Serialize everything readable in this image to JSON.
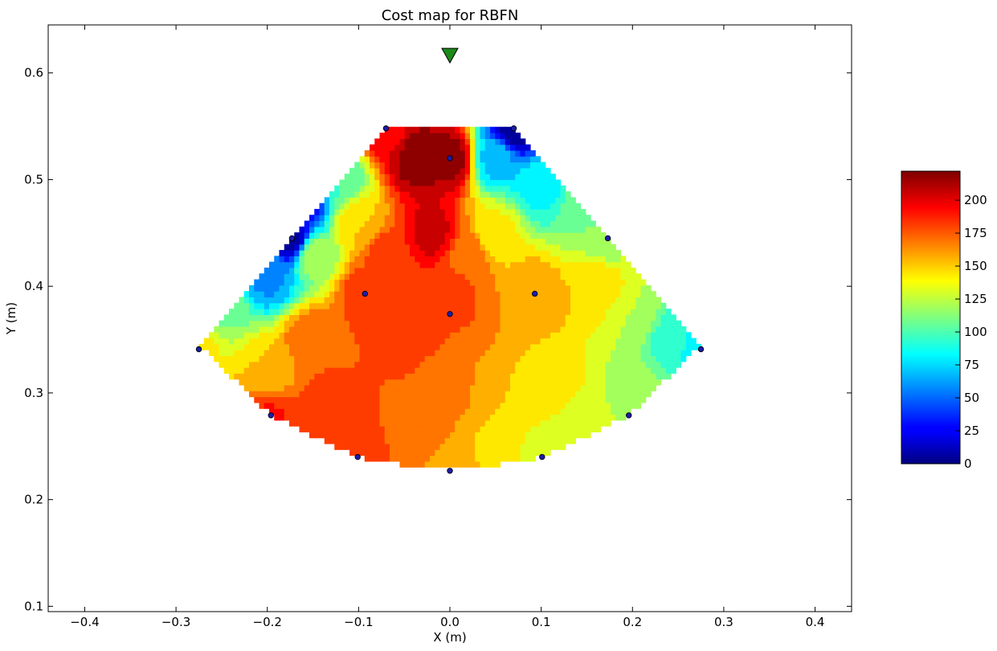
{
  "chart_data": {
    "type": "heatmap",
    "title": "Cost map for RBFN",
    "xlabel": "X (m)",
    "ylabel": "Y (m)",
    "xlim": [
      -0.44,
      0.44
    ],
    "ylim": [
      0.095,
      0.645
    ],
    "x_ticks": [
      -0.4,
      -0.3,
      -0.2,
      -0.1,
      0.0,
      0.1,
      0.2,
      0.3,
      0.4
    ],
    "x_tick_labels": [
      "−0.4",
      "−0.3",
      "−0.2",
      "−0.1",
      "0.0",
      "0.1",
      "0.2",
      "0.3",
      "0.4"
    ],
    "y_ticks": [
      0.1,
      0.2,
      0.3,
      0.4,
      0.5,
      0.6
    ],
    "y_tick_labels": [
      "0.1",
      "0.2",
      "0.3",
      "0.4",
      "0.5",
      "0.6"
    ],
    "colorbar": {
      "range": [
        0,
        222
      ],
      "ticks": [
        0,
        25,
        50,
        75,
        100,
        125,
        150,
        175,
        200
      ],
      "tick_labels": [
        "0",
        "25",
        "50",
        "75",
        "100",
        "125",
        "150",
        "175",
        "200"
      ],
      "colormap": "jet"
    },
    "grid": false,
    "field_points": [
      {
        "x": 0.0,
        "y": 0.52,
        "value": 218
      },
      {
        "x": -0.035,
        "y": 0.52,
        "value": 220
      },
      {
        "x": -0.02,
        "y": 0.45,
        "value": 205
      },
      {
        "x": -0.07,
        "y": 0.548,
        "value": 195
      },
      {
        "x": 0.07,
        "y": 0.548,
        "value": 5
      },
      {
        "x": 0.05,
        "y": 0.52,
        "value": 70
      },
      {
        "x": 0.1,
        "y": 0.49,
        "value": 85
      },
      {
        "x": 0.15,
        "y": 0.47,
        "value": 110
      },
      {
        "x": 0.17,
        "y": 0.445,
        "value": 120
      },
      {
        "x": 0.05,
        "y": 0.45,
        "value": 140
      },
      {
        "x": 0.02,
        "y": 0.43,
        "value": 170
      },
      {
        "x": 0.0,
        "y": 0.395,
        "value": 180
      },
      {
        "x": -0.173,
        "y": 0.445,
        "value": 5
      },
      {
        "x": -0.16,
        "y": 0.48,
        "value": 25
      },
      {
        "x": -0.12,
        "y": 0.5,
        "value": 100
      },
      {
        "x": -0.1,
        "y": 0.46,
        "value": 150
      },
      {
        "x": -0.07,
        "y": 0.43,
        "value": 180
      },
      {
        "x": -0.093,
        "y": 0.393,
        "value": 182
      },
      {
        "x": -0.05,
        "y": 0.36,
        "value": 185
      },
      {
        "x": 0.0,
        "y": 0.374,
        "value": 175
      },
      {
        "x": 0.093,
        "y": 0.393,
        "value": 160
      },
      {
        "x": 0.16,
        "y": 0.4,
        "value": 150
      },
      {
        "x": 0.2,
        "y": 0.37,
        "value": 125
      },
      {
        "x": 0.24,
        "y": 0.35,
        "value": 95
      },
      {
        "x": 0.275,
        "y": 0.341,
        "value": 75
      },
      {
        "x": 0.2,
        "y": 0.3,
        "value": 120
      },
      {
        "x": 0.196,
        "y": 0.279,
        "value": 125
      },
      {
        "x": 0.15,
        "y": 0.28,
        "value": 128
      },
      {
        "x": 0.12,
        "y": 0.31,
        "value": 145
      },
      {
        "x": 0.101,
        "y": 0.24,
        "value": 130
      },
      {
        "x": 0.06,
        "y": 0.29,
        "value": 150
      },
      {
        "x": 0.05,
        "y": 0.25,
        "value": 148
      },
      {
        "x": 0.0,
        "y": 0.227,
        "value": 155
      },
      {
        "x": 0.0,
        "y": 0.3,
        "value": 165
      },
      {
        "x": -0.03,
        "y": 0.26,
        "value": 168
      },
      {
        "x": -0.05,
        "y": 0.3,
        "value": 175
      },
      {
        "x": -0.101,
        "y": 0.24,
        "value": 180
      },
      {
        "x": -0.13,
        "y": 0.28,
        "value": 185
      },
      {
        "x": -0.196,
        "y": 0.279,
        "value": 188
      },
      {
        "x": -0.2,
        "y": 0.32,
        "value": 150
      },
      {
        "x": -0.15,
        "y": 0.35,
        "value": 175
      },
      {
        "x": -0.275,
        "y": 0.341,
        "value": 140
      },
      {
        "x": -0.25,
        "y": 0.38,
        "value": 110
      },
      {
        "x": -0.2,
        "y": 0.41,
        "value": 60
      },
      {
        "x": -0.15,
        "y": 0.43,
        "value": 120
      }
    ],
    "sample_points": [
      {
        "x": -0.07,
        "y": 0.548
      },
      {
        "x": 0.07,
        "y": 0.548
      },
      {
        "x": 0.0,
        "y": 0.52
      },
      {
        "x": -0.173,
        "y": 0.445
      },
      {
        "x": 0.173,
        "y": 0.445
      },
      {
        "x": -0.093,
        "y": 0.393
      },
      {
        "x": 0.093,
        "y": 0.393
      },
      {
        "x": 0.0,
        "y": 0.374
      },
      {
        "x": -0.275,
        "y": 0.341
      },
      {
        "x": 0.275,
        "y": 0.341
      },
      {
        "x": -0.196,
        "y": 0.279
      },
      {
        "x": 0.196,
        "y": 0.279
      },
      {
        "x": -0.101,
        "y": 0.24
      },
      {
        "x": 0.101,
        "y": 0.24
      },
      {
        "x": 0.0,
        "y": 0.227
      }
    ],
    "target_marker": {
      "x": 0.0,
      "y": 0.617,
      "shape": "triangle-down",
      "color": "#1a8a1a"
    },
    "workspace_polygon": [
      [
        -0.07,
        0.548
      ],
      [
        0.07,
        0.548
      ],
      [
        0.275,
        0.345
      ],
      [
        0.196,
        0.279
      ],
      [
        0.101,
        0.24
      ],
      [
        0.03,
        0.23
      ],
      [
        -0.03,
        0.23
      ],
      [
        -0.101,
        0.24
      ],
      [
        -0.196,
        0.279
      ],
      [
        -0.275,
        0.345
      ]
    ]
  }
}
